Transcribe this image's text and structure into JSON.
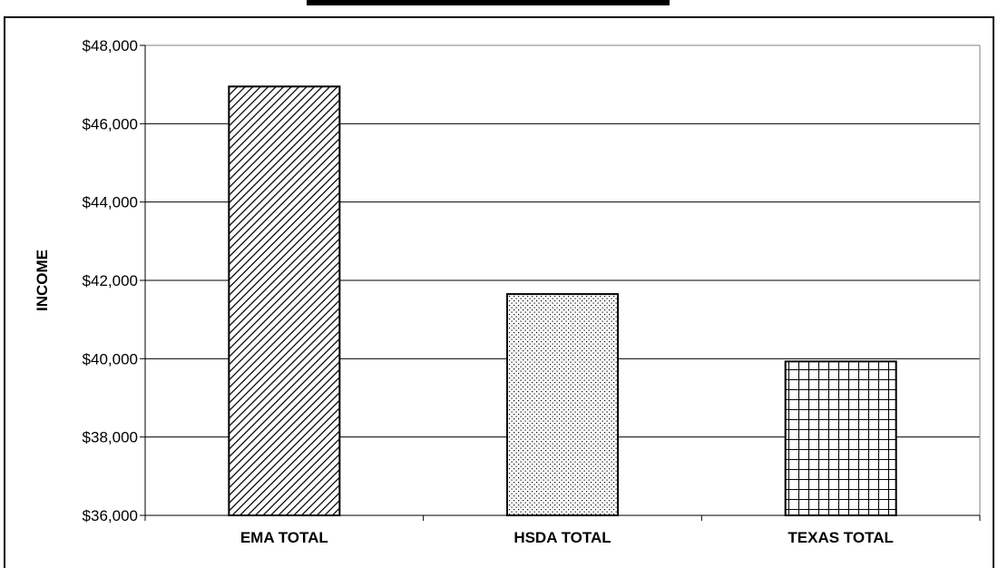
{
  "chart_data": {
    "type": "bar",
    "categories": [
      "EMA TOTAL",
      "HSDA TOTAL",
      "TEXAS TOTAL"
    ],
    "values": [
      46950,
      41650,
      39930
    ],
    "ylabel": "INCOME",
    "xlabel": "",
    "ylim": [
      36000,
      48000
    ],
    "ytick_step": 2000,
    "ytick_labels": [
      "$36,000",
      "$38,000",
      "$40,000",
      "$42,000",
      "$44,000",
      "$46,000",
      "$48,000"
    ],
    "grid": true,
    "patterns": [
      "diagonal-hatch",
      "dots",
      "grid-cross"
    ],
    "colors": {
      "bar_stroke": "#000000",
      "grid": "#000000",
      "background": "#ffffff"
    }
  }
}
